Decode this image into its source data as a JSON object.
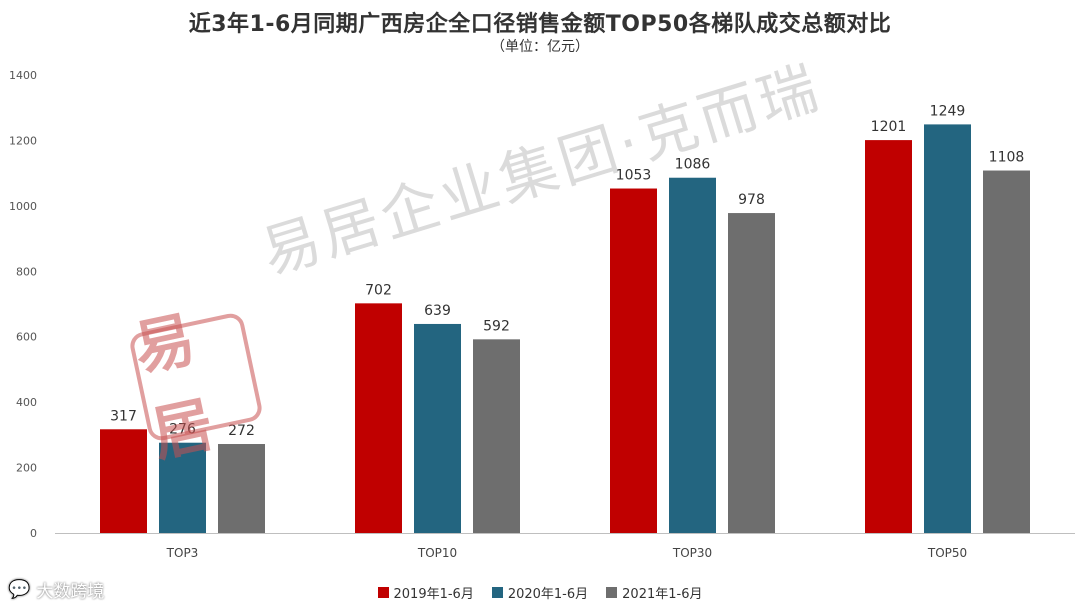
{
  "chart_data": {
    "type": "bar",
    "title": "近3年1-6月同期广西房企全口径销售金额TOP50各梯队成交总额对比",
    "subtitle": "（单位：亿元）",
    "categories": [
      "TOP3",
      "TOP10",
      "TOP30",
      "TOP50"
    ],
    "series": [
      {
        "name": "2019年1-6月",
        "color": "#C00000",
        "values": [
          317,
          702,
          1053,
          1201
        ]
      },
      {
        "name": "2020年1-6月",
        "color": "#236580",
        "values": [
          276,
          639,
          1086,
          1249
        ]
      },
      {
        "name": "2021年1-6月",
        "color": "#6E6E6E",
        "values": [
          272,
          592,
          978,
          1108
        ]
      }
    ],
    "ylim": [
      0,
      1400
    ],
    "yticks": [
      0,
      200,
      400,
      600,
      800,
      1000,
      1200,
      1400
    ],
    "grid": false,
    "legend_position": "bottom",
    "data_labels": true
  },
  "watermark": {
    "text": "易居企业集团·克而瑞",
    "seal_text": "易居"
  },
  "corner_logo": {
    "text": "大数跨境",
    "icon": "chat-bubble-icon"
  }
}
